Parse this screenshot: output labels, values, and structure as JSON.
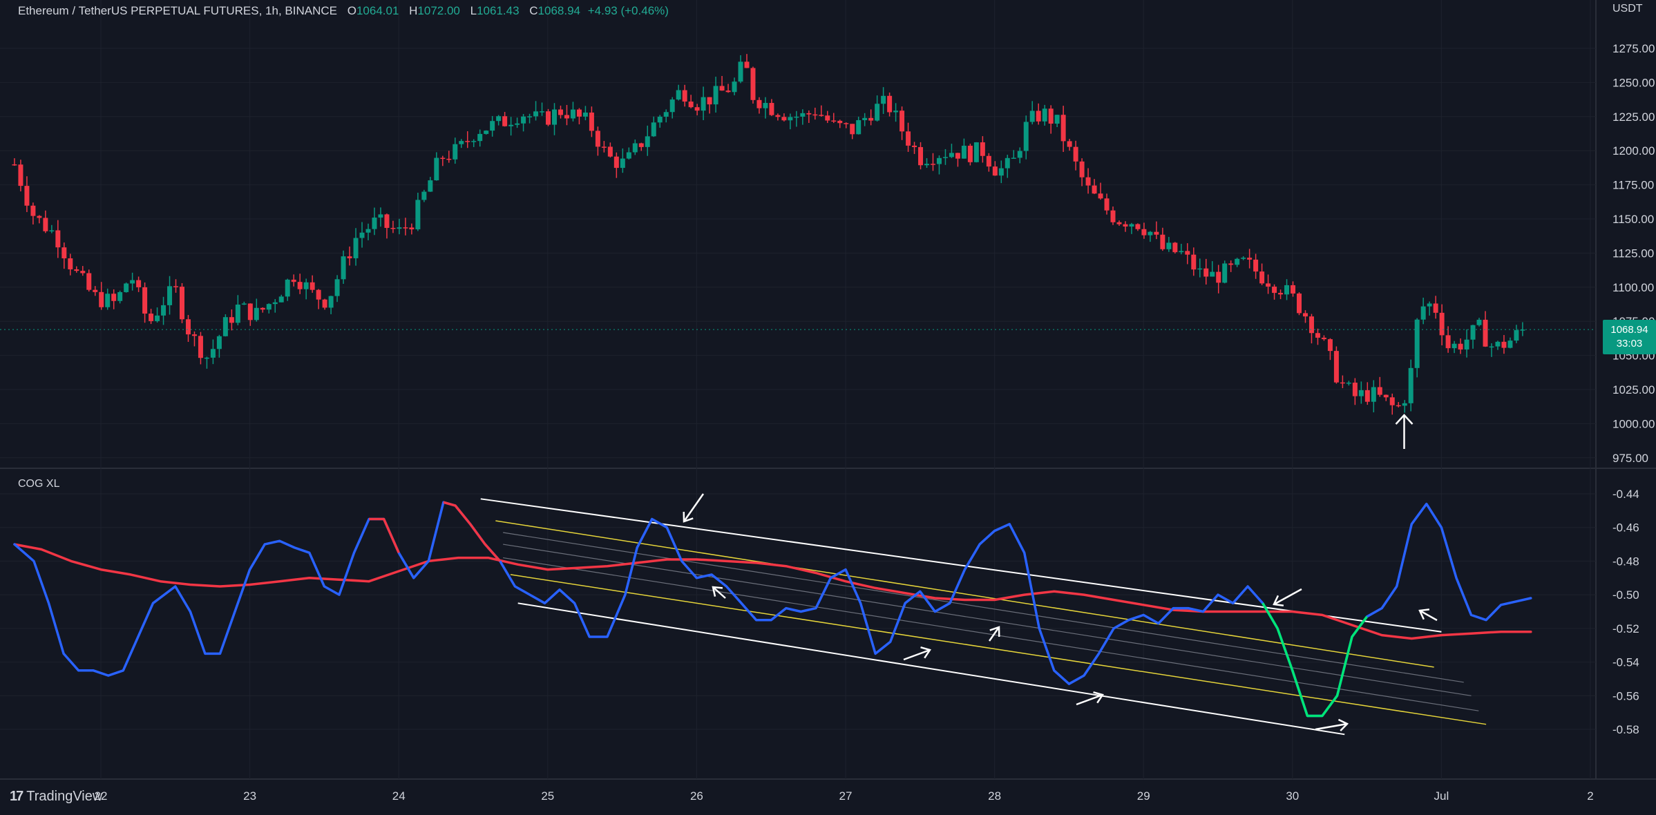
{
  "header": {
    "symbol": "Ethereum / TetherUS PERPETUAL FUTURES, 1h, BINANCE",
    "o_label": "O",
    "o_value": "1064.01",
    "h_label": "H",
    "h_value": "1072.00",
    "l_label": "L",
    "l_value": "1061.43",
    "c_label": "C",
    "c_value": "1068.94",
    "change": "+4.93 (+0.46%)"
  },
  "currency": "USDT",
  "indicator_title": "COG XL",
  "last_price": {
    "value": "1068.94",
    "countdown": "33:03"
  },
  "footer": {
    "logo": "17",
    "brand": "TradingView"
  },
  "colors": {
    "background": "#131722",
    "up": "#089981",
    "down": "#f23645",
    "cog_blue": "#2962ff",
    "cog_red": "#f23645",
    "cog_green": "#00e676",
    "channel_white": "#ffffff",
    "channel_yellow": "#e6d53a",
    "channel_gray": "#6b6f7a"
  },
  "chart_data": [
    {
      "type": "candlestick",
      "title": "Ethereum / TetherUS PERPETUAL FUTURES, 1h, BINANCE",
      "ylabel": "USDT",
      "ylim": [
        965,
        1285
      ],
      "yticks": [
        "1275.00",
        "1250.00",
        "1225.00",
        "1200.00",
        "1175.00",
        "1150.00",
        "1125.00",
        "1100.00",
        "1075.00",
        "1050.00",
        "1025.00",
        "1000.00",
        "975.00"
      ],
      "xticks": [
        "22",
        "23",
        "24",
        "25",
        "26",
        "27",
        "28",
        "29",
        "30",
        "Jul",
        "2"
      ],
      "close_path_days": [
        [
          21.42,
          1190
        ],
        [
          21.55,
          1152
        ],
        [
          21.7,
          1138
        ],
        [
          21.82,
          1112
        ],
        [
          21.95,
          1093
        ],
        [
          22.1,
          1088
        ],
        [
          22.2,
          1110
        ],
        [
          22.32,
          1073
        ],
        [
          22.42,
          1090
        ],
        [
          22.5,
          1098
        ],
        [
          22.6,
          1065
        ],
        [
          22.72,
          1048
        ],
        [
          22.82,
          1070
        ],
        [
          22.92,
          1085
        ],
        [
          23.05,
          1080
        ],
        [
          23.15,
          1090
        ],
        [
          23.3,
          1110
        ],
        [
          23.42,
          1095
        ],
        [
          23.52,
          1090
        ],
        [
          23.62,
          1115
        ],
        [
          23.72,
          1138
        ],
        [
          23.85,
          1148
        ],
        [
          24.0,
          1140
        ],
        [
          24.1,
          1150
        ],
        [
          24.28,
          1195
        ],
        [
          24.4,
          1200
        ],
        [
          24.52,
          1215
        ],
        [
          24.68,
          1220
        ],
        [
          24.82,
          1228
        ],
        [
          24.95,
          1222
        ],
        [
          25.1,
          1230
        ],
        [
          25.28,
          1220
        ],
        [
          25.4,
          1195
        ],
        [
          25.52,
          1190
        ],
        [
          25.62,
          1205
        ],
        [
          25.75,
          1225
        ],
        [
          25.9,
          1245
        ],
        [
          26.0,
          1235
        ],
        [
          26.12,
          1240
        ],
        [
          26.25,
          1248
        ],
        [
          26.32,
          1265
        ],
        [
          26.38,
          1240
        ],
        [
          26.5,
          1232
        ],
        [
          26.62,
          1226
        ],
        [
          26.72,
          1225
        ],
        [
          26.8,
          1230
        ],
        [
          26.92,
          1218
        ],
        [
          27.05,
          1215
        ],
        [
          27.18,
          1230
        ],
        [
          27.28,
          1235
        ],
        [
          27.38,
          1215
        ],
        [
          27.5,
          1195
        ],
        [
          27.62,
          1198
        ],
        [
          27.72,
          1200
        ],
        [
          27.82,
          1198
        ],
        [
          27.92,
          1200
        ],
        [
          28.02,
          1185
        ],
        [
          28.12,
          1190
        ],
        [
          28.22,
          1220
        ],
        [
          28.32,
          1228
        ],
        [
          28.42,
          1220
        ],
        [
          28.52,
          1195
        ],
        [
          28.62,
          1172
        ],
        [
          28.72,
          1160
        ],
        [
          28.82,
          1150
        ],
        [
          28.95,
          1148
        ],
        [
          29.05,
          1140
        ],
        [
          29.12,
          1128
        ],
        [
          29.25,
          1125
        ],
        [
          29.38,
          1110
        ],
        [
          29.48,
          1108
        ],
        [
          29.58,
          1112
        ],
        [
          29.68,
          1118
        ],
        [
          29.8,
          1108
        ],
        [
          29.92,
          1100
        ],
        [
          30.02,
          1090
        ],
        [
          30.12,
          1075
        ],
        [
          30.22,
          1055
        ],
        [
          30.32,
          1030
        ],
        [
          30.42,
          1020
        ],
        [
          30.52,
          1022
        ],
        [
          30.6,
          1018
        ],
        [
          30.7,
          1010
        ],
        [
          30.78,
          1025
        ],
        [
          30.85,
          1085
        ],
        [
          30.95,
          1088
        ],
        [
          31.05,
          1055
        ],
        [
          31.15,
          1060
        ],
        [
          31.25,
          1070
        ],
        [
          31.35,
          1055
        ],
        [
          31.45,
          1060
        ],
        [
          31.55,
          1068.94
        ]
      ],
      "last_price": 1068.94
    },
    {
      "type": "line",
      "title": "COG XL",
      "ylim": [
        -0.585,
        -0.435
      ],
      "yticks": [
        "-0.44",
        "-0.46",
        "-0.48",
        "-0.50",
        "-0.52",
        "-0.54",
        "-0.56",
        "-0.58"
      ],
      "xticks": [
        "22",
        "23",
        "24",
        "25",
        "26",
        "27",
        "28",
        "29",
        "30",
        "Jul",
        "2"
      ],
      "series": [
        {
          "color": "#2962ff",
          "x": [
            21.42,
            21.55,
            21.65,
            21.75,
            21.85,
            21.95,
            22.05,
            22.15,
            22.25,
            22.35,
            22.5,
            22.6,
            22.7,
            22.8,
            22.9,
            23.0,
            23.1,
            23.2,
            23.3,
            23.4,
            23.5,
            23.6,
            23.7,
            23.8,
            23.9,
            24.0,
            24.1,
            24.2,
            24.3,
            24.38,
            24.48,
            24.58,
            24.68,
            24.78,
            24.88,
            24.98,
            25.08,
            25.18,
            25.28,
            25.4,
            25.52,
            25.6,
            25.7,
            25.8,
            25.9,
            26.0,
            26.1,
            26.2,
            26.3,
            26.4,
            26.5,
            26.6,
            26.7,
            26.8,
            26.9,
            27.0,
            27.1,
            27.2,
            27.3,
            27.4,
            27.5,
            27.6,
            27.7,
            27.8,
            27.9,
            28.0,
            28.1,
            28.2,
            28.3,
            28.4,
            28.5,
            28.6,
            28.7,
            28.8,
            28.9,
            29.0,
            29.1,
            29.2,
            29.3,
            29.4,
            29.5,
            29.6,
            29.7,
            29.8,
            29.9,
            30.0,
            30.1,
            30.2,
            30.3,
            30.4,
            30.5,
            30.6,
            30.7,
            30.8,
            30.9,
            31.0,
            31.1,
            31.2,
            31.3,
            31.4,
            31.5,
            31.6
          ],
          "values": [
            -0.47,
            -0.48,
            -0.505,
            -0.535,
            -0.545,
            -0.545,
            -0.548,
            -0.545,
            -0.525,
            -0.505,
            -0.495,
            -0.51,
            -0.535,
            -0.535,
            -0.51,
            -0.485,
            -0.47,
            -0.468,
            -0.472,
            -0.475,
            -0.495,
            -0.5,
            -0.475,
            -0.455,
            -0.455,
            -0.475,
            -0.49,
            -0.48,
            -0.445,
            -0.447,
            -0.458,
            -0.47,
            -0.48,
            -0.495,
            -0.5,
            -0.505,
            -0.497,
            -0.505,
            -0.525,
            -0.525,
            -0.5,
            -0.472,
            -0.455,
            -0.46,
            -0.48,
            -0.49,
            -0.488,
            -0.495,
            -0.505,
            -0.515,
            -0.515,
            -0.508,
            -0.51,
            -0.508,
            -0.49,
            -0.485,
            -0.505,
            -0.535,
            -0.528,
            -0.505,
            -0.498,
            -0.51,
            -0.505,
            -0.485,
            -0.47,
            -0.462,
            -0.458,
            -0.475,
            -0.52,
            -0.545,
            -0.553,
            -0.548,
            -0.535,
            -0.52,
            -0.515,
            -0.512,
            -0.517,
            -0.508,
            -0.508,
            -0.51,
            -0.5,
            -0.505,
            -0.495,
            -0.505,
            -0.52,
            -0.545,
            -0.572,
            -0.572,
            -0.56,
            -0.525,
            -0.513,
            -0.508,
            -0.495,
            -0.458,
            -0.446,
            -0.46,
            -0.49,
            -0.512,
            -0.515,
            -0.506,
            -0.504,
            -0.502
          ]
        },
        {
          "color": "#f23645",
          "x": [
            21.42,
            21.6,
            21.8,
            22.0,
            22.2,
            22.4,
            22.6,
            22.8,
            23.0,
            23.2,
            23.4,
            23.6,
            23.8,
            24.0,
            24.2,
            24.4,
            24.6,
            24.8,
            25.0,
            25.2,
            25.4,
            25.6,
            25.8,
            26.0,
            26.2,
            26.4,
            26.6,
            26.8,
            27.0,
            27.2,
            27.4,
            27.6,
            27.8,
            28.0,
            28.2,
            28.4,
            28.6,
            28.8,
            29.0,
            29.2,
            29.4,
            29.6,
            29.8,
            30.0,
            30.2,
            30.4,
            30.6,
            30.8,
            31.0,
            31.2,
            31.4,
            31.6
          ],
          "values": [
            -0.47,
            -0.473,
            -0.48,
            -0.485,
            -0.488,
            -0.492,
            -0.494,
            -0.495,
            -0.494,
            -0.492,
            -0.49,
            -0.491,
            -0.492,
            -0.486,
            -0.48,
            -0.478,
            -0.478,
            -0.482,
            -0.485,
            -0.484,
            -0.483,
            -0.481,
            -0.479,
            -0.479,
            -0.48,
            -0.481,
            -0.483,
            -0.487,
            -0.492,
            -0.496,
            -0.499,
            -0.502,
            -0.503,
            -0.503,
            -0.5,
            -0.498,
            -0.5,
            -0.503,
            -0.506,
            -0.509,
            -0.51,
            -0.51,
            -0.51,
            -0.51,
            -0.512,
            -0.518,
            -0.524,
            -0.526,
            -0.524,
            -0.523,
            -0.522,
            -0.522
          ]
        }
      ]
    }
  ]
}
